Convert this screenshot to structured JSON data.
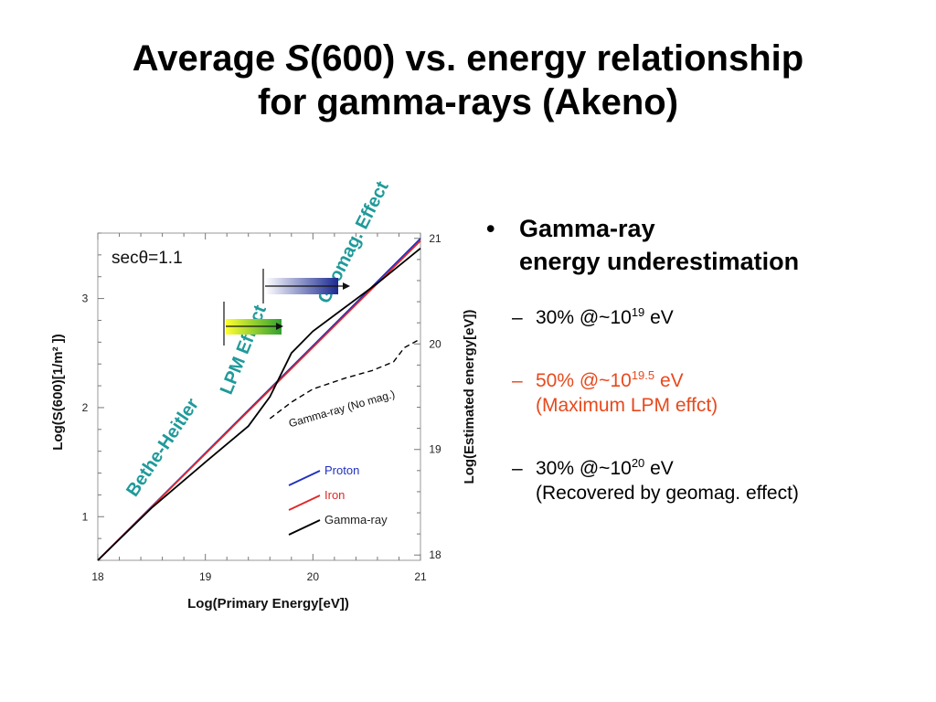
{
  "slide": {
    "title_line1_pre": "Average ",
    "title_line1_italic": "S",
    "title_line1_post": "(600) vs. energy relationship",
    "title_line2": "for gamma-rays (Akeno)"
  },
  "bullets": {
    "main_line1": "Gamma-ray",
    "main_line2": "energy underestimation",
    "bullet_glyph": "•",
    "dash_glyph": "–",
    "items": [
      {
        "pre": "30% @~10",
        "exp": "19",
        "post": " eV",
        "note": "",
        "color": "#000000"
      },
      {
        "pre": "50% @~10",
        "exp": "19.5",
        "post": " eV",
        "note": "(Maximum LPM effct)",
        "color": "#e8491d"
      },
      {
        "pre": "30% @~10",
        "exp": "20",
        "post": " eV",
        "note": "(Recovered by geomag. effect)",
        "color": "#000000"
      }
    ]
  },
  "chart_data": {
    "type": "line",
    "xlabel": "Log(Primary Energy[eV])",
    "ylabel": "Log(S(600)[1/m² ])",
    "y2label": "Log(Estimated energy[eV])",
    "xlim": [
      18,
      21
    ],
    "ylim": [
      0.6,
      3.6
    ],
    "y2lim": [
      17.95,
      21.05
    ],
    "xticks": [
      "18",
      "19",
      "20",
      "21"
    ],
    "yticks": [
      "1",
      "2",
      "3"
    ],
    "y2ticks": [
      "18",
      "19",
      "20",
      "21"
    ],
    "annotation_sec": "secθ=1.1",
    "annotations": {
      "bethe": "Bethe-Heitler",
      "lpm": "LPM Effect",
      "geomag": "Geomag. Effect",
      "gamma_nomag": "Gamma-ray (No mag.)"
    },
    "legend_position": "bottom-right",
    "series": [
      {
        "name": "Proton",
        "color": "#2030c0",
        "x": [
          18.0,
          21.0
        ],
        "y": [
          0.6,
          3.55
        ]
      },
      {
        "name": "Iron",
        "color": "#e02828",
        "x": [
          18.0,
          21.0
        ],
        "y": [
          0.6,
          3.53
        ]
      },
      {
        "name": "Gamma-ray",
        "color": "#000000",
        "x": [
          18.0,
          18.5,
          19.0,
          19.4,
          19.6,
          19.8,
          20.0,
          20.3,
          20.6,
          21.0
        ],
        "y": [
          0.6,
          1.08,
          1.5,
          1.83,
          2.1,
          2.5,
          2.7,
          2.92,
          3.14,
          3.46
        ]
      },
      {
        "name": "Gamma-ray (No mag.)",
        "color": "#000000",
        "dash": true,
        "x": [
          19.6,
          19.8,
          20.0,
          20.3,
          20.55,
          20.75,
          20.85,
          21.0
        ],
        "y": [
          1.9,
          2.05,
          2.17,
          2.27,
          2.34,
          2.42,
          2.55,
          2.63
        ]
      }
    ]
  }
}
